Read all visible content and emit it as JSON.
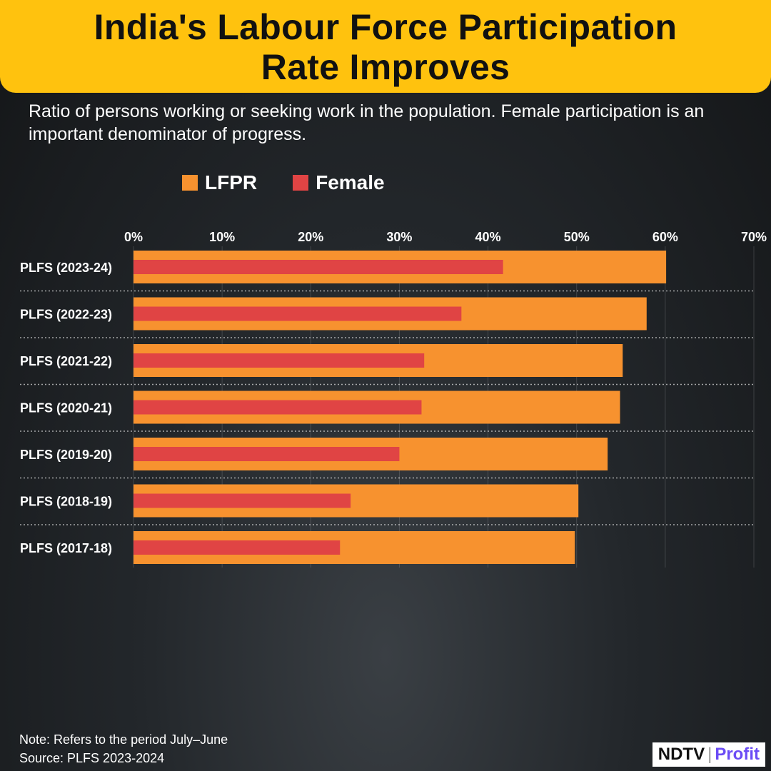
{
  "header": {
    "title_line1": "India's Labour Force Participation",
    "title_line2": "Rate Improves"
  },
  "subtitle": "Ratio of persons working or seeking work in the population. Female participation is an important denominator of progress.",
  "chart_data": {
    "type": "bar",
    "orientation": "horizontal",
    "categories": [
      "PLFS (2023-24)",
      "PLFS (2022-23)",
      "PLFS (2021-22)",
      "PLFS (2020-21)",
      "PLFS (2019-20)",
      "PLFS (2018-19)",
      "PLFS (2017-18)"
    ],
    "series": [
      {
        "name": "LFPR",
        "color": "#F7922F",
        "values": [
          60.1,
          57.9,
          55.2,
          54.9,
          53.5,
          50.2,
          49.8
        ]
      },
      {
        "name": "Female",
        "color": "#E04444",
        "values": [
          41.7,
          37.0,
          32.8,
          32.5,
          30.0,
          24.5,
          23.3
        ]
      }
    ],
    "xlim": [
      0,
      70
    ],
    "xticks": [
      "0%",
      "10%",
      "20%",
      "30%",
      "40%",
      "50%",
      "60%",
      "70%"
    ],
    "legend_position": "top",
    "grid": true
  },
  "footer": {
    "note": "Note: Refers to the period July–June",
    "source": "Source: PLFS 2023-2024"
  },
  "logo": {
    "brand": "NDTV",
    "product": "Profit",
    "product_color": "#6B4CF5"
  }
}
